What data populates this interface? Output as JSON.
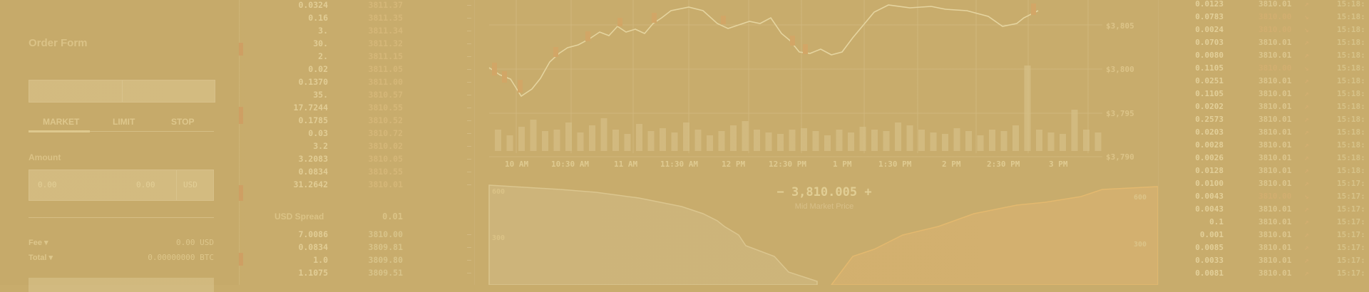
{
  "order_form": {
    "title": "Order Form",
    "segment": {
      "left": "",
      "right": ""
    },
    "tabs": [
      "MARKET",
      "LIMIT",
      "STOP"
    ],
    "amount_label": "Amount",
    "amount_placeholder": "0.00",
    "amount_unit": "USD",
    "fee_label": "Fee ▾",
    "fee_value": "0.00 USD",
    "total_label": "Total ▾",
    "total_value": "0.00000000 BTC"
  },
  "order_book": {
    "asks": [
      {
        "size": "0.0324",
        "price": "3811.37"
      },
      {
        "size": "0.16",
        "price": "3811.35"
      },
      {
        "size": "3.",
        "price": "3811.34"
      },
      {
        "size": "30.",
        "price": "3811.32"
      },
      {
        "size": "2.",
        "price": "3811.15"
      },
      {
        "size": "0.02",
        "price": "3811.05"
      },
      {
        "size": "0.1370",
        "price": "3811.00"
      },
      {
        "size": "35.",
        "price": "3810.57"
      },
      {
        "size": "17.7244",
        "price": "3810.55"
      },
      {
        "size": "0.1785",
        "price": "3810.52"
      },
      {
        "size": "0.03",
        "price": "3810.72"
      },
      {
        "size": "3.2",
        "price": "3810.02"
      },
      {
        "size": "3.2083",
        "price": "3810.05"
      },
      {
        "size": "0.0834",
        "price": "3810.55"
      },
      {
        "size": "31.2642",
        "price": "3810.01"
      }
    ],
    "spread_label": "USD Spread",
    "spread_value": "0.01",
    "bids": [
      {
        "size": "7.0086",
        "price": "3810.00"
      },
      {
        "size": "0.0834",
        "price": "3809.81"
      },
      {
        "size": "1.0",
        "price": "3809.80"
      },
      {
        "size": "1.1075",
        "price": "3809.51"
      }
    ]
  },
  "price_chart": {
    "y_labels": [
      "$3,805",
      "$3,800",
      "$3,795",
      "$3,790"
    ],
    "x_labels": [
      "10 AM",
      "10:30 AM",
      "11 AM",
      "11:30 AM",
      "12 PM",
      "12:30 PM",
      "1 PM",
      "1:30 PM",
      "2 PM",
      "2:30 PM",
      "3 PM"
    ],
    "mid_price_minus": "−",
    "mid_price": "3,810.005",
    "mid_price_plus": "+",
    "mid_price_caption": "Mid Market Price",
    "depth_left_labels": [
      "600",
      "300"
    ],
    "depth_right_labels": [
      "600",
      "300"
    ]
  },
  "trade_history": {
    "rows": [
      {
        "size": "0.0123",
        "price": "3810.01",
        "dir": "up",
        "time": "15:18:"
      },
      {
        "size": "0.0783",
        "price": "3810.00",
        "dir": "down",
        "time": "15:18:"
      },
      {
        "size": "0.0024",
        "price": "3810.00",
        "dir": "down",
        "time": "15:18:"
      },
      {
        "size": "0.0703",
        "price": "3810.01",
        "dir": "up",
        "time": "15:18:"
      },
      {
        "size": "0.0080",
        "price": "3810.01",
        "dir": "up",
        "time": "15:18:"
      },
      {
        "size": "0.1105",
        "price": "3810.00",
        "dir": "down",
        "time": "15:18:"
      },
      {
        "size": "0.0251",
        "price": "3810.01",
        "dir": "up",
        "time": "15:18:"
      },
      {
        "size": "0.1105",
        "price": "3810.01",
        "dir": "up",
        "time": "15:18:"
      },
      {
        "size": "0.0202",
        "price": "3810.01",
        "dir": "up",
        "time": "15:18:"
      },
      {
        "size": "0.2573",
        "price": "3810.01",
        "dir": "up",
        "time": "15:18:"
      },
      {
        "size": "0.0203",
        "price": "3810.01",
        "dir": "up",
        "time": "15:18:"
      },
      {
        "size": "0.0028",
        "price": "3810.01",
        "dir": "up",
        "time": "15:18:"
      },
      {
        "size": "0.0026",
        "price": "3810.01",
        "dir": "up",
        "time": "15:18:"
      },
      {
        "size": "0.0128",
        "price": "3810.01",
        "dir": "up",
        "time": "15:18:"
      },
      {
        "size": "0.0100",
        "price": "3810.01",
        "dir": "up",
        "time": "15:17:"
      },
      {
        "size": "0.0043",
        "price": "3810.00",
        "dir": "down",
        "time": "15:17:"
      },
      {
        "size": "0.0043",
        "price": "3810.01",
        "dir": "up",
        "time": "15:17:"
      },
      {
        "size": "0.1",
        "price": "3810.01",
        "dir": "up",
        "time": "15:17:"
      },
      {
        "size": "0.001",
        "price": "3810.01",
        "dir": "up",
        "time": "15:17:"
      },
      {
        "size": "0.0085",
        "price": "3810.01",
        "dir": "up",
        "time": "15:17:"
      },
      {
        "size": "0.0033",
        "price": "3810.01",
        "dir": "up",
        "time": "15:17:"
      },
      {
        "size": "0.0081",
        "price": "3810.01",
        "dir": "up",
        "time": "15:17:"
      }
    ]
  }
}
